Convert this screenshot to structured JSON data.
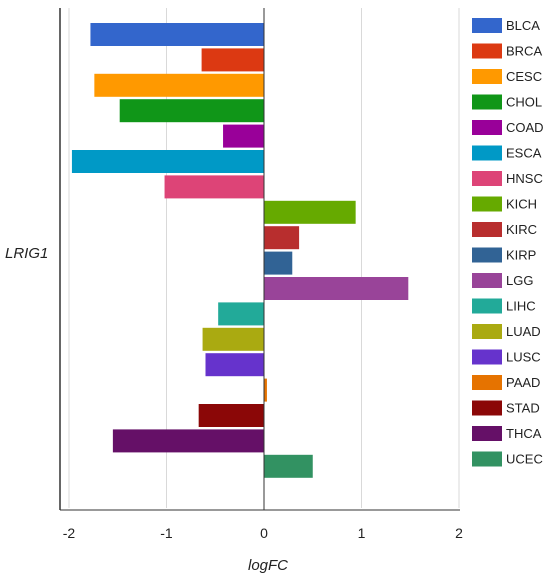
{
  "chart_data": {
    "type": "bar",
    "orientation": "horizontal",
    "group_label": "LRIG1",
    "xlabel": "logFC",
    "xlim": [
      -2.0,
      2.0
    ],
    "x_ticks": [
      "-2",
      "-1",
      "0",
      "1",
      "2"
    ],
    "grid": true,
    "legend_position": "right",
    "categories": [
      "BLCA",
      "BRCA",
      "CESC",
      "CHOL",
      "COAD",
      "ESCA",
      "HNSC",
      "KICH",
      "KIRC",
      "KIRP",
      "LGG",
      "LIHC",
      "LUAD",
      "LUSC",
      "PAAD",
      "STAD",
      "THCA",
      "UCEC"
    ],
    "values": [
      -1.78,
      -0.64,
      -1.74,
      -1.48,
      -0.42,
      -1.97,
      -1.02,
      0.94,
      0.36,
      0.29,
      1.48,
      -0.47,
      -0.63,
      -0.6,
      0.03,
      -0.67,
      -1.55,
      0.5
    ],
    "colors": [
      "#3366CC",
      "#DC3912",
      "#FF9900",
      "#109618",
      "#990099",
      "#0099C6",
      "#DD4477",
      "#66AA00",
      "#B82E2E",
      "#316395",
      "#994499",
      "#22AA99",
      "#AAAA11",
      "#6633CC",
      "#E67300",
      "#8B0707",
      "#651067",
      "#329262"
    ]
  }
}
